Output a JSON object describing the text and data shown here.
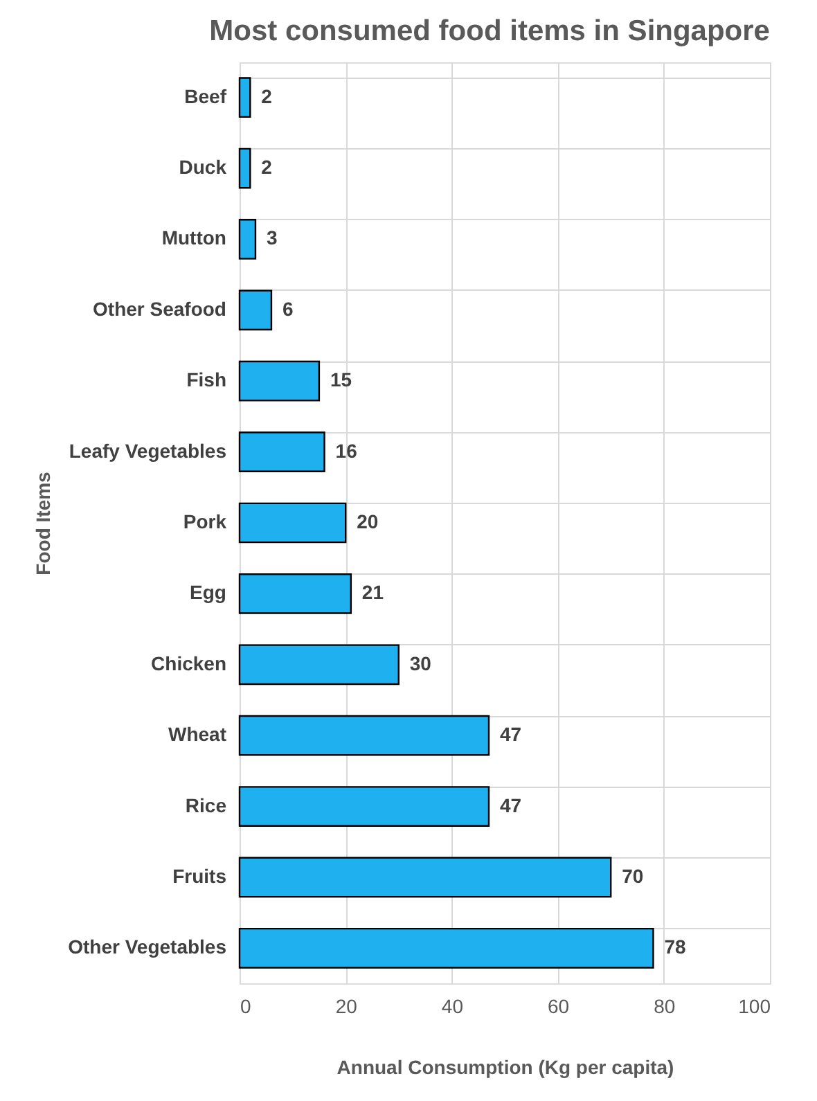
{
  "chart_data": {
    "type": "bar",
    "orientation": "horizontal",
    "title": "Most consumed food items in Singapore",
    "xlabel": "Annual Consumption  (Kg per capita)",
    "ylabel": "Food Items",
    "categories": [
      "Beef",
      "Duck",
      "Mutton",
      "Other Seafood",
      "Fish",
      "Leafy Vegetables",
      "Pork",
      "Egg",
      "Chicken",
      "Wheat",
      "Rice",
      "Fruits",
      "Other Vegetables"
    ],
    "values": [
      2,
      2,
      3,
      6,
      15,
      16,
      20,
      21,
      30,
      47,
      47,
      70,
      78
    ],
    "color": "#1fb0ef",
    "xlim": [
      0,
      100
    ],
    "xticks": [
      0,
      20,
      40,
      60,
      80,
      100
    ],
    "grid": true,
    "data_labels": true
  }
}
